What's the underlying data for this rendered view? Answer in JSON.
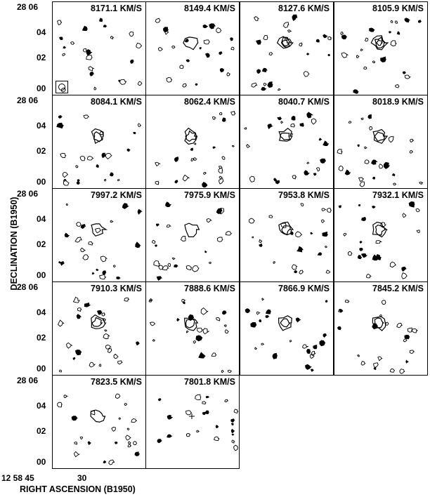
{
  "figure": {
    "y_axis_label": "DECLINATION (B1950)",
    "x_axis_label": "RIGHT ASCENSION (B1950)",
    "y_ticks": [
      "28 06",
      "04",
      "02",
      "00"
    ],
    "x_ticks": [
      "12 58 45",
      "30"
    ]
  },
  "panels": [
    {
      "velocity": "8171.1 KM/S"
    },
    {
      "velocity": "8149.4 KM/S"
    },
    {
      "velocity": "8127.6 KM/S"
    },
    {
      "velocity": "8105.9 KM/S"
    },
    {
      "velocity": "8084.1 KM/S"
    },
    {
      "velocity": "8062.4 KM/S"
    },
    {
      "velocity": "8040.7 KM/S"
    },
    {
      "velocity": "8018.9 KM/S"
    },
    {
      "velocity": "7997.2 KM/S"
    },
    {
      "velocity": "7975.9 KM/S"
    },
    {
      "velocity": "7953.8 KM/S"
    },
    {
      "velocity": "7932.1 KM/S"
    },
    {
      "velocity": "7910.3 KM/S"
    },
    {
      "velocity": "7888.6 KM/S"
    },
    {
      "velocity": "7866.9 KM/S"
    },
    {
      "velocity": "7845.2 KM/S"
    },
    {
      "velocity": "7823.5 KM/S"
    },
    {
      "velocity": "7801.8 KM/S"
    }
  ],
  "contour_levels_by_panel": [
    0,
    1,
    3,
    3,
    2,
    2,
    2,
    2,
    1,
    1,
    2,
    2,
    2,
    2,
    2,
    2,
    1,
    0
  ]
}
